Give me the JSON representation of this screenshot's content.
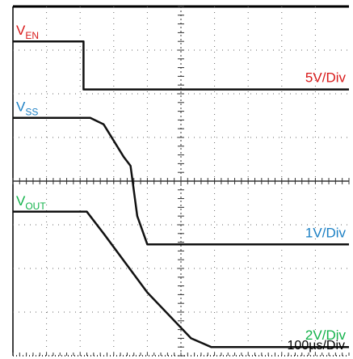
{
  "chart_data": {
    "type": "line",
    "title": "",
    "xlabel": "",
    "ylabel": "",
    "grid": true,
    "time_scale": "100µs/Div",
    "x_divisions": 10,
    "y_divisions": 8,
    "x_range_div": [
      0,
      10
    ],
    "y_range_div": [
      -4,
      4
    ],
    "series": [
      {
        "name": "VEN",
        "label_main": "V",
        "label_sub": "EN",
        "scale": "5V/Div",
        "color": "#d81818",
        "x": [
          0,
          2.1,
          2.1,
          10
        ],
        "y": [
          3.2,
          3.2,
          2.1,
          2.1
        ]
      },
      {
        "name": "VSS",
        "label_main": "V",
        "label_sub": "SS",
        "scale": "1V/Div",
        "color": "#1a7fc4",
        "x": [
          0,
          2.3,
          2.7,
          3.3,
          3.5,
          3.7,
          4.0,
          10
        ],
        "y": [
          1.45,
          1.45,
          1.3,
          0.55,
          0.35,
          -0.8,
          -1.45,
          -1.45
        ]
      },
      {
        "name": "VOUT",
        "label_main": "V",
        "label_sub": "OUT",
        "scale": "2V/Div",
        "color": "#12b24a",
        "x": [
          0,
          2.2,
          2.7,
          4.0,
          5.3,
          5.9,
          10
        ],
        "y": [
          -0.7,
          -0.7,
          -1.2,
          -2.55,
          -3.6,
          -3.8,
          -3.8
        ]
      }
    ]
  }
}
